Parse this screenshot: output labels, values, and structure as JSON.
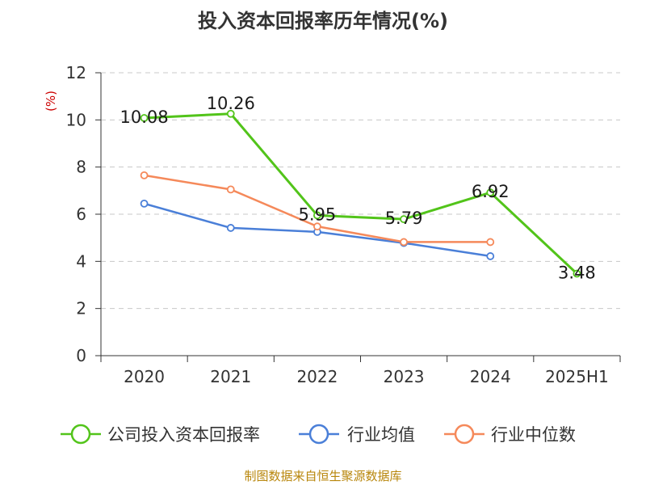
{
  "chart_data": {
    "type": "line",
    "title": "投入资本回报率历年情况(%)",
    "ylabel": "(%)",
    "categories": [
      "2020",
      "2021",
      "2022",
      "2023",
      "2024",
      "2025H1"
    ],
    "yticks": [
      0,
      2,
      4,
      6,
      8,
      10,
      12
    ],
    "ylim": [
      0,
      12
    ],
    "grid": true,
    "legend_position": "bottom",
    "series": [
      {
        "name": "公司投入资本回报率",
        "color": "#52c41a",
        "values": [
          10.08,
          10.26,
          5.95,
          5.79,
          6.92,
          3.48
        ],
        "labels": [
          "10.08",
          "10.26",
          "5.95",
          "5.79",
          "6.92",
          "3.48"
        ]
      },
      {
        "name": "行业均值",
        "color": "#4a7fd8",
        "values": [
          6.45,
          5.42,
          5.25,
          4.78,
          4.22,
          null
        ]
      },
      {
        "name": "行业中位数",
        "color": "#f5895a",
        "values": [
          7.65,
          7.05,
          5.48,
          4.82,
          4.82,
          null
        ]
      }
    ]
  },
  "footer": {
    "source": "制图数据来自恒生聚源数据库"
  }
}
